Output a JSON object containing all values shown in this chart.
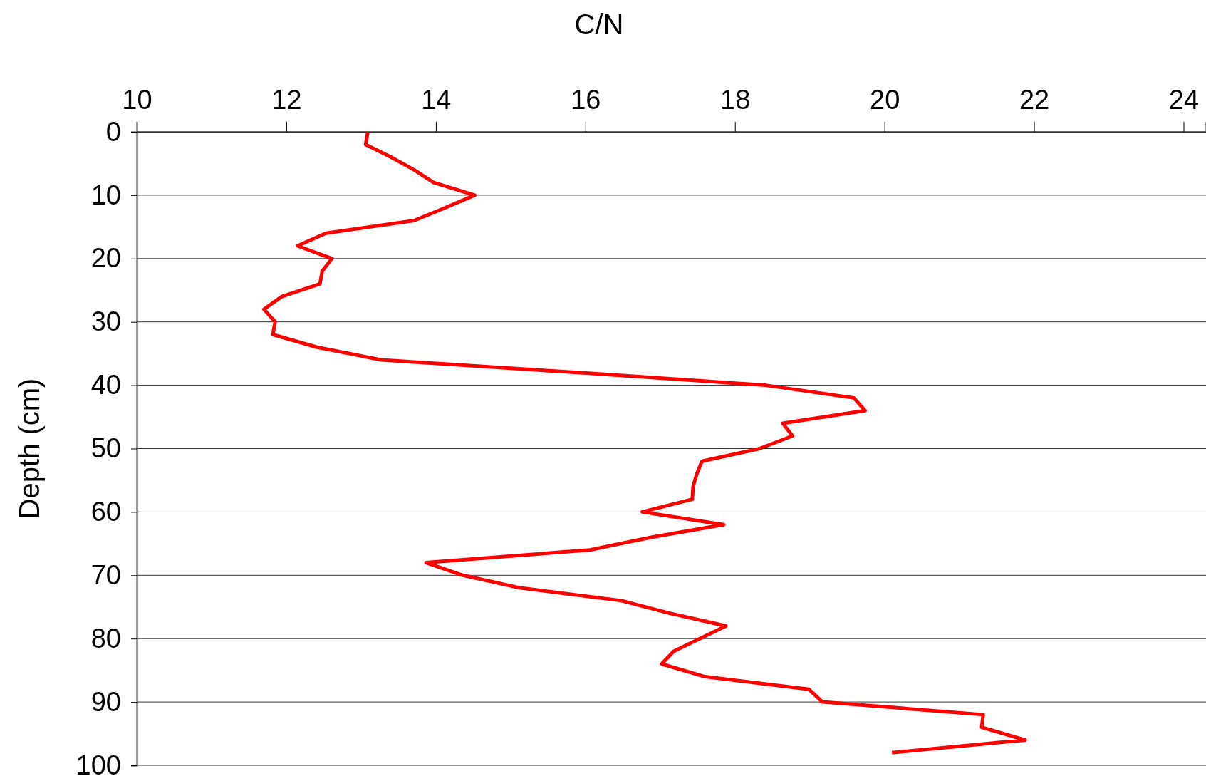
{
  "chart_data": {
    "type": "line",
    "xlabel": "C/N",
    "ylabel": "Depth (cm)",
    "x": [
      13.09,
      13.06,
      13.4,
      13.71,
      13.97,
      14.52,
      14.12,
      13.71,
      12.53,
      12.15,
      12.61,
      12.48,
      12.45,
      11.94,
      11.7,
      11.85,
      11.82,
      12.41,
      13.27,
      15.9,
      18.41,
      19.59,
      19.74,
      18.64,
      18.77,
      18.33,
      17.56,
      17.49,
      17.44,
      17.43,
      16.76,
      17.85,
      16.88,
      16.06,
      13.87,
      14.36,
      15.13,
      16.48,
      17.13,
      17.88,
      17.53,
      17.18,
      17.02,
      17.6,
      18.99,
      19.17,
      21.32,
      21.3,
      21.88,
      20.1
    ],
    "series": [
      {
        "color": "#ff0000",
        "values": [
          0,
          2,
          4,
          6,
          8,
          10,
          12,
          14,
          16,
          18,
          20,
          22,
          24,
          26,
          28,
          30,
          32,
          34,
          36,
          38,
          40,
          42,
          44,
          46,
          48,
          50,
          52,
          54,
          56,
          58,
          60,
          62,
          64,
          66,
          68,
          70,
          72,
          74,
          76,
          78,
          80,
          82,
          84,
          86,
          88,
          90,
          92,
          94,
          96,
          98
        ]
      }
    ],
    "xlim": [
      10,
      24.3
    ],
    "xticks": [
      10,
      12,
      14,
      16,
      18,
      20,
      22,
      24
    ],
    "ylim": [
      100,
      0
    ],
    "yticks": [
      0,
      10,
      20,
      30,
      40,
      50,
      60,
      70,
      80,
      90,
      100
    ],
    "grid": "y",
    "marker": "none",
    "line_style": "solid"
  }
}
